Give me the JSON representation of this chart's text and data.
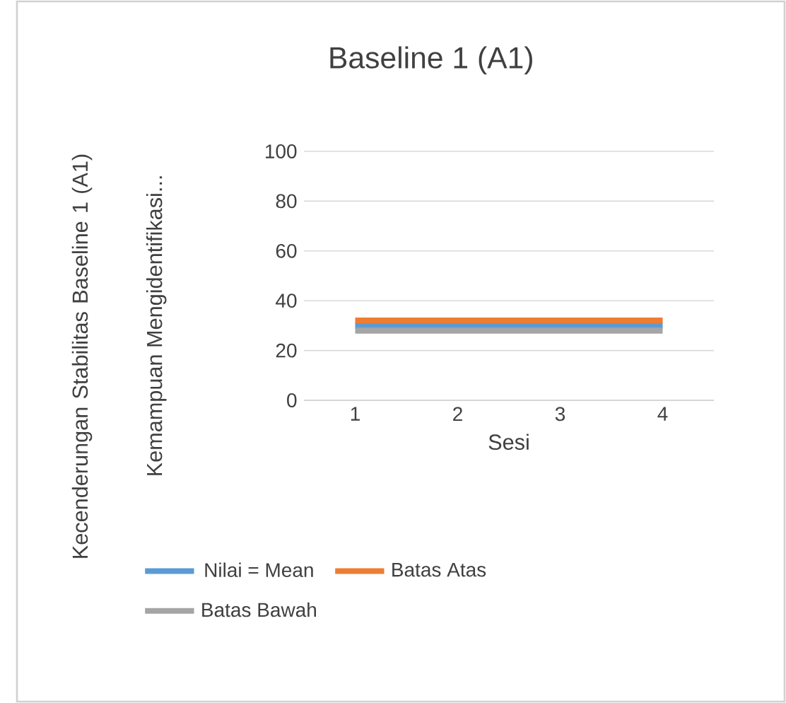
{
  "chart_data": {
    "type": "line",
    "title": "Baseline 1 (A1)",
    "xlabel": "Sesi",
    "ylabel": "Kemampuan Mengidentifikasi...",
    "annotations": [
      "Kecenderungan Stabilitas  Baseline 1 (A1)"
    ],
    "categories": [
      "1",
      "2",
      "3",
      "4"
    ],
    "series": [
      {
        "name": "Nilai = Mean",
        "color": "#5b9bd5",
        "values": [
          30,
          30,
          30,
          30
        ]
      },
      {
        "name": "Batas Atas",
        "color": "#ed7d31",
        "values": [
          32,
          32,
          32,
          32
        ]
      },
      {
        "name": "Batas Bawah",
        "color": "#a5a5a5",
        "values": [
          28,
          28,
          28,
          28
        ]
      }
    ],
    "ylim": [
      0,
      100
    ],
    "yticks": [
      0,
      20,
      40,
      60,
      80,
      100
    ],
    "grid": "y",
    "legend": "bottom"
  }
}
